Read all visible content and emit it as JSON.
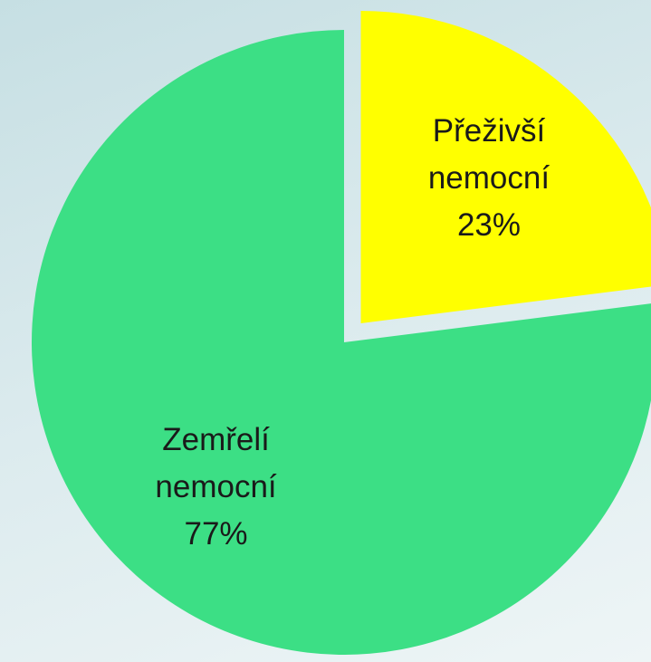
{
  "chart_data": {
    "type": "pie",
    "categories": [
      "Přeživší nemocní",
      "Zemřelí nemocní"
    ],
    "values": [
      23,
      77
    ],
    "value_labels": [
      "23%",
      "77%"
    ],
    "colors": [
      "#ffff00",
      "#3cdf85"
    ]
  }
}
